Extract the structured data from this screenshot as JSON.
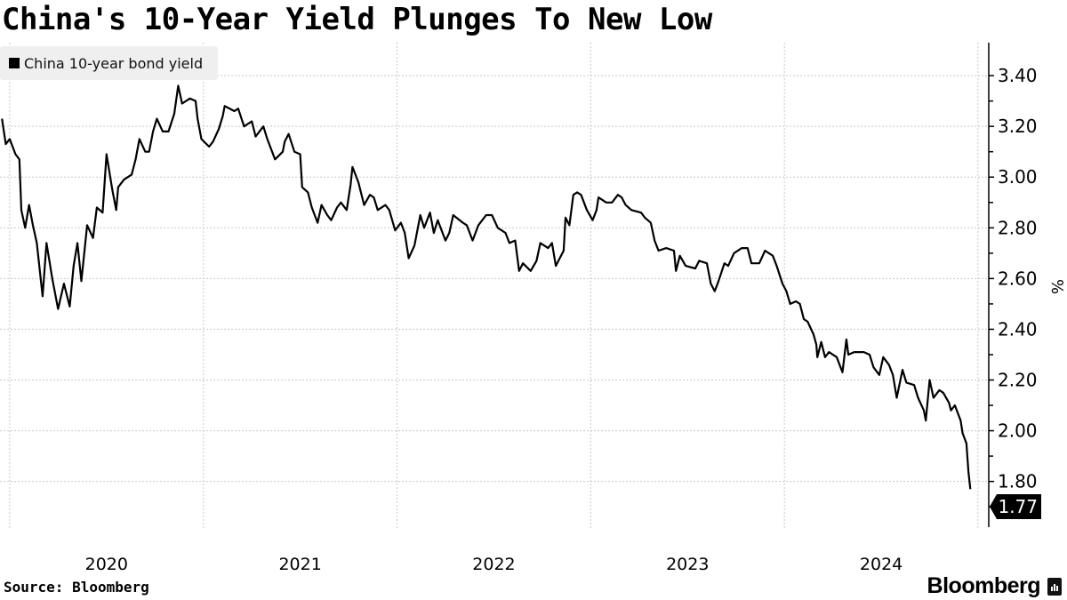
{
  "chart_data": {
    "type": "line",
    "title": "China's 10-Year Yield Plunges To New Low",
    "ylabel": "%",
    "ylim": [
      1.62,
      3.53
    ],
    "xlim": [
      2019.95,
      2025.0
    ],
    "yticks": [
      "3.40",
      "3.20",
      "3.00",
      "2.80",
      "2.60",
      "2.40",
      "2.20",
      "2.00",
      "1.80"
    ],
    "xticks": [
      "2020",
      "2021",
      "2022",
      "2023",
      "2024"
    ],
    "grid": true,
    "legend_position": "top-left",
    "last_value_label": "1.77",
    "series": [
      {
        "name": "China 10-year bond yield",
        "color": "#000000",
        "x": [
          2019.96,
          2019.98,
          2020.0,
          2020.03,
          2020.05,
          2020.06,
          2020.08,
          2020.1,
          2020.12,
          2020.14,
          2020.17,
          2020.19,
          2020.22,
          2020.25,
          2020.28,
          2020.31,
          2020.33,
          2020.35,
          2020.37,
          2020.4,
          2020.43,
          2020.45,
          2020.48,
          2020.5,
          2020.53,
          2020.55,
          2020.56,
          2020.59,
          2020.63,
          2020.65,
          2020.67,
          2020.7,
          2020.72,
          2020.74,
          2020.76,
          2020.79,
          2020.82,
          2020.85,
          2020.87,
          2020.89,
          2020.93,
          2020.96,
          2020.97,
          2020.99,
          2021.03,
          2021.05,
          2021.08,
          2021.1,
          2021.11,
          2021.16,
          2021.18,
          2021.21,
          2021.25,
          2021.27,
          2021.31,
          2021.33,
          2021.37,
          2021.41,
          2021.42,
          2021.44,
          2021.47,
          2021.5,
          2021.51,
          2021.54,
          2021.56,
          2021.59,
          2021.61,
          2021.64,
          2021.66,
          2021.69,
          2021.71,
          2021.74,
          2021.76,
          2021.77,
          2021.8,
          2021.83,
          2021.86,
          2021.88,
          2021.9,
          2021.94,
          2021.96,
          2021.99,
          2022.02,
          2022.04,
          2022.06,
          2022.09,
          2022.12,
          2022.14,
          2022.17,
          2022.19,
          2022.21,
          2022.25,
          2022.27,
          2022.29,
          2022.34,
          2022.36,
          2022.39,
          2022.42,
          2022.46,
          2022.49,
          2022.52,
          2022.56,
          2022.58,
          2022.61,
          2022.63,
          2022.65,
          2022.69,
          2022.72,
          2022.74,
          2022.78,
          2022.8,
          2022.82,
          2022.86,
          2022.87,
          2022.89,
          2022.91,
          2022.93,
          2022.95,
          2022.98,
          2023.01,
          2023.03,
          2023.04,
          2023.08,
          2023.11,
          2023.14,
          2023.16,
          2023.18,
          2023.21,
          2023.26,
          2023.28,
          2023.31,
          2023.33,
          2023.35,
          2023.39,
          2023.43,
          2023.44,
          2023.46,
          2023.49,
          2023.54,
          2023.56,
          2023.6,
          2023.62,
          2023.64,
          2023.66,
          2023.69,
          2023.71,
          2023.74,
          2023.78,
          2023.81,
          2023.83,
          2023.87,
          2023.9,
          2023.94,
          2023.96,
          2023.99,
          2024.01,
          2024.03,
          2024.06,
          2024.08,
          2024.1,
          2024.12,
          2024.15,
          2024.165,
          2024.17,
          2024.19,
          2024.21,
          2024.23,
          2024.27,
          2024.3,
          2024.32,
          2024.33,
          2024.36,
          2024.41,
          2024.44,
          2024.46,
          2024.49,
          2024.51,
          2024.54,
          2024.56,
          2024.58,
          2024.61,
          2024.63,
          2024.67,
          2024.69,
          2024.72,
          2024.73,
          2024.75,
          2024.77,
          2024.8,
          2024.82,
          2024.85,
          2024.86,
          2024.88,
          2024.91,
          2024.92,
          2024.94,
          2024.95,
          2024.96
        ],
        "y": [
          3.23,
          3.13,
          3.15,
          3.09,
          3.07,
          2.87,
          2.8,
          2.89,
          2.81,
          2.74,
          2.53,
          2.74,
          2.6,
          2.48,
          2.58,
          2.49,
          2.65,
          2.74,
          2.59,
          2.81,
          2.76,
          2.88,
          2.86,
          3.09,
          2.95,
          2.87,
          2.96,
          2.99,
          3.01,
          3.07,
          3.15,
          3.1,
          3.1,
          3.18,
          3.23,
          3.18,
          3.18,
          3.25,
          3.36,
          3.29,
          3.31,
          3.3,
          3.23,
          3.15,
          3.12,
          3.14,
          3.19,
          3.24,
          3.28,
          3.26,
          3.27,
          3.2,
          3.22,
          3.16,
          3.2,
          3.15,
          3.07,
          3.1,
          3.14,
          3.17,
          3.1,
          3.09,
          2.96,
          2.94,
          2.88,
          2.82,
          2.89,
          2.85,
          2.83,
          2.88,
          2.9,
          2.87,
          2.97,
          3.04,
          2.98,
          2.89,
          2.93,
          2.92,
          2.87,
          2.89,
          2.87,
          2.79,
          2.82,
          2.78,
          2.68,
          2.73,
          2.85,
          2.8,
          2.86,
          2.78,
          2.83,
          2.75,
          2.78,
          2.85,
          2.82,
          2.81,
          2.75,
          2.81,
          2.85,
          2.85,
          2.8,
          2.78,
          2.74,
          2.75,
          2.63,
          2.66,
          2.63,
          2.67,
          2.74,
          2.72,
          2.74,
          2.65,
          2.71,
          2.84,
          2.81,
          2.93,
          2.94,
          2.93,
          2.87,
          2.83,
          2.87,
          2.92,
          2.9,
          2.9,
          2.93,
          2.92,
          2.89,
          2.87,
          2.86,
          2.84,
          2.82,
          2.75,
          2.71,
          2.72,
          2.71,
          2.63,
          2.69,
          2.65,
          2.64,
          2.67,
          2.66,
          2.58,
          2.55,
          2.59,
          2.66,
          2.65,
          2.7,
          2.72,
          2.72,
          2.66,
          2.66,
          2.71,
          2.69,
          2.65,
          2.58,
          2.55,
          2.5,
          2.51,
          2.5,
          2.44,
          2.43,
          2.38,
          2.34,
          2.29,
          2.35,
          2.29,
          2.31,
          2.29,
          2.23,
          2.36,
          2.3,
          2.31,
          2.31,
          2.3,
          2.25,
          2.22,
          2.29,
          2.26,
          2.22,
          2.13,
          2.24,
          2.19,
          2.18,
          2.13,
          2.08,
          2.04,
          2.2,
          2.13,
          2.16,
          2.15,
          2.11,
          2.08,
          2.1,
          2.04,
          1.99,
          1.95,
          1.84,
          1.77
        ]
      }
    ]
  },
  "source": "Source: Bloomberg",
  "brand": "Bloomberg"
}
